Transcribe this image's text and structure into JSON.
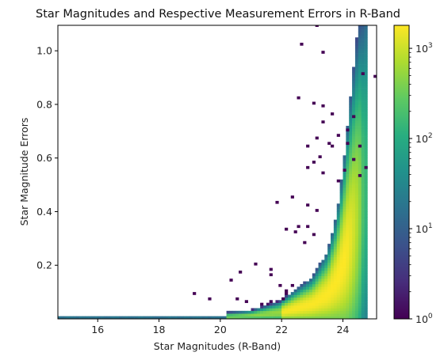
{
  "chart_data": {
    "type": "heatmap",
    "title": "Star Magnitudes and Respective Measurement Errors in R-Band",
    "xlabel": "Star Magnitudes (R-Band)",
    "ylabel": "Star Magnitude Errors",
    "xlim": [
      14.7,
      25.1
    ],
    "ylim": [
      0.0,
      1.095
    ],
    "x_ticks": [
      16,
      18,
      20,
      22,
      24
    ],
    "x_tick_labels": [
      "16",
      "18",
      "20",
      "22",
      "24"
    ],
    "y_ticks": [
      0.2,
      0.4,
      0.6,
      0.8,
      1.0
    ],
    "y_tick_labels": [
      "0.2",
      "0.4",
      "0.6",
      "0.8",
      "1.0"
    ],
    "grid": false,
    "colorscale": "viridis",
    "colorbar": {
      "scale": "log",
      "range": [
        1,
        1800
      ],
      "ticks": [
        1,
        10,
        100,
        1000
      ],
      "tick_labels": [
        {
          "base": "10",
          "exp": "0"
        },
        {
          "base": "10",
          "exp": "1"
        },
        {
          "base": "10",
          "exp": "2"
        },
        {
          "base": "10",
          "exp": "3"
        }
      ]
    },
    "bin_width_mag": 0.1,
    "bin_height_err": 0.01,
    "ridge": {
      "description_points_mag_err": [
        [
          14.7,
          0.004
        ],
        [
          20.0,
          0.006
        ],
        [
          21.0,
          0.012
        ],
        [
          22.0,
          0.025
        ],
        [
          23.0,
          0.055
        ],
        [
          23.5,
          0.09
        ],
        [
          23.8,
          0.14
        ],
        [
          24.0,
          0.2
        ],
        [
          24.2,
          0.28
        ]
      ],
      "peak_count": 1800
    },
    "outliers_mag_err": [
      [
        23.15,
        1.09
      ],
      [
        22.6,
        1.02
      ],
      [
        23.4,
        0.99
      ],
      [
        24.7,
        0.915
      ],
      [
        25.05,
        0.905
      ],
      [
        22.55,
        0.825
      ],
      [
        23.0,
        0.8
      ],
      [
        23.4,
        0.79
      ],
      [
        23.65,
        0.765
      ],
      [
        24.4,
        0.755
      ],
      [
        23.4,
        0.73
      ],
      [
        24.2,
        0.7
      ],
      [
        23.9,
        0.68
      ],
      [
        23.1,
        0.67
      ],
      [
        24.15,
        0.655
      ],
      [
        23.5,
        0.65
      ],
      [
        23.6,
        0.64
      ],
      [
        24.55,
        0.64
      ],
      [
        22.85,
        0.64
      ],
      [
        23.25,
        0.6
      ],
      [
        24.3,
        0.595
      ],
      [
        23.05,
        0.585
      ],
      [
        22.9,
        0.57
      ],
      [
        24.75,
        0.57
      ],
      [
        24.05,
        0.555
      ],
      [
        23.35,
        0.54
      ],
      [
        24.5,
        0.53
      ],
      [
        23.9,
        0.515
      ],
      [
        22.4,
        0.455
      ],
      [
        21.9,
        0.43
      ],
      [
        22.9,
        0.42
      ],
      [
        23.1,
        0.4
      ],
      [
        22.5,
        0.345
      ],
      [
        22.2,
        0.33
      ],
      [
        22.45,
        0.32
      ],
      [
        22.85,
        0.34
      ],
      [
        23.0,
        0.31
      ],
      [
        22.75,
        0.28
      ],
      [
        21.1,
        0.2
      ],
      [
        21.6,
        0.18
      ],
      [
        20.7,
        0.175
      ],
      [
        21.6,
        0.16
      ],
      [
        20.35,
        0.145
      ],
      [
        19.2,
        0.09
      ],
      [
        20.5,
        0.07
      ],
      [
        19.6,
        0.075
      ],
      [
        20.8,
        0.065
      ],
      [
        21.3,
        0.055
      ],
      [
        21.7,
        0.06
      ],
      [
        22.0,
        0.07
      ],
      [
        22.2,
        0.09
      ],
      [
        21.95,
        0.12
      ],
      [
        22.4,
        0.125
      ],
      [
        22.2,
        0.1
      ]
    ]
  }
}
